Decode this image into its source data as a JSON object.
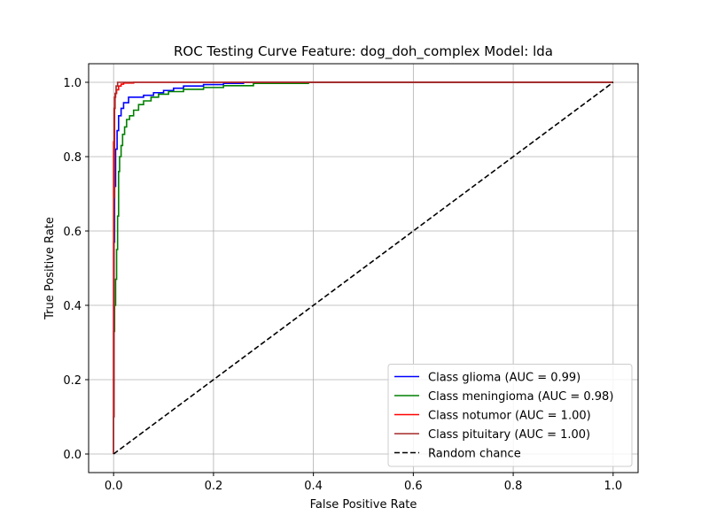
{
  "chart_data": {
    "type": "line",
    "title": "ROC Testing Curve Feature: dog_doh_complex Model: lda",
    "xlabel": "False Positive Rate",
    "ylabel": "True Positive Rate",
    "xlim": [
      -0.05,
      1.05
    ],
    "ylim": [
      -0.05,
      1.05
    ],
    "xticks": [
      0.0,
      0.2,
      0.4,
      0.6,
      0.8,
      1.0
    ],
    "yticks": [
      0.0,
      0.2,
      0.4,
      0.6,
      0.8,
      1.0
    ],
    "tick_labels_x": [
      "0.0",
      "0.2",
      "0.4",
      "0.6",
      "0.8",
      "1.0"
    ],
    "tick_labels_y": [
      "0.0",
      "0.2",
      "0.4",
      "0.6",
      "0.8",
      "1.0"
    ],
    "grid": true,
    "legend_position": "lower-right",
    "series": [
      {
        "name": "Class glioma (AUC = 0.99)",
        "color": "#0000ff",
        "style": "solid",
        "x": [
          0,
          0,
          0.002,
          0.002,
          0.004,
          0.004,
          0.007,
          0.007,
          0.01,
          0.01,
          0.015,
          0.015,
          0.02,
          0.02,
          0.03,
          0.03,
          0.06,
          0.06,
          0.08,
          0.08,
          0.1,
          0.1,
          0.12,
          0.12,
          0.14,
          0.14,
          0.18,
          0.18,
          0.22,
          0.22,
          0.26,
          0.26,
          1.0
        ],
        "y": [
          0,
          0.57,
          0.57,
          0.72,
          0.72,
          0.82,
          0.82,
          0.87,
          0.87,
          0.91,
          0.91,
          0.93,
          0.93,
          0.945,
          0.945,
          0.96,
          0.96,
          0.965,
          0.965,
          0.972,
          0.972,
          0.978,
          0.978,
          0.984,
          0.984,
          0.99,
          0.99,
          0.994,
          0.994,
          0.997,
          0.997,
          1.0,
          1.0
        ]
      },
      {
        "name": "Class meningioma (AUC = 0.98)",
        "color": "#008000",
        "style": "solid",
        "x": [
          0,
          0,
          0.002,
          0.002,
          0.004,
          0.004,
          0.006,
          0.006,
          0.008,
          0.008,
          0.01,
          0.01,
          0.012,
          0.012,
          0.015,
          0.015,
          0.018,
          0.018,
          0.022,
          0.022,
          0.026,
          0.026,
          0.032,
          0.032,
          0.04,
          0.04,
          0.05,
          0.05,
          0.06,
          0.06,
          0.075,
          0.075,
          0.09,
          0.09,
          0.11,
          0.11,
          0.14,
          0.14,
          0.18,
          0.18,
          0.22,
          0.22,
          0.28,
          0.28,
          0.39,
          0.39,
          1.0
        ],
        "y": [
          0,
          0.33,
          0.33,
          0.4,
          0.4,
          0.47,
          0.47,
          0.55,
          0.55,
          0.64,
          0.64,
          0.76,
          0.76,
          0.8,
          0.8,
          0.83,
          0.83,
          0.86,
          0.86,
          0.88,
          0.88,
          0.9,
          0.9,
          0.91,
          0.91,
          0.925,
          0.925,
          0.94,
          0.94,
          0.95,
          0.95,
          0.96,
          0.96,
          0.968,
          0.968,
          0.975,
          0.975,
          0.981,
          0.981,
          0.986,
          0.986,
          0.991,
          0.991,
          0.997,
          0.997,
          1.0,
          1.0
        ]
      },
      {
        "name": "Class notumor (AUC = 1.00)",
        "color": "#ff0000",
        "style": "solid",
        "x": [
          0,
          0,
          0.001,
          0.001,
          0.002,
          0.002,
          0.004,
          0.004,
          0.006,
          0.006,
          0.01,
          0.01,
          0.015,
          0.015,
          0.02,
          0.02,
          0.04,
          0.04,
          1.0
        ],
        "y": [
          0,
          0.84,
          0.84,
          0.93,
          0.93,
          0.96,
          0.96,
          0.97,
          0.97,
          0.98,
          0.98,
          0.99,
          0.99,
          0.995,
          0.995,
          0.998,
          0.998,
          1.0,
          1.0
        ]
      },
      {
        "name": "Class pituitary (AUC = 1.00)",
        "color": "#a52a2a",
        "style": "solid",
        "x": [
          0,
          0,
          0.001,
          0.001,
          0.002,
          0.002,
          0.003,
          0.003,
          0.005,
          0.005,
          0.008,
          0.008,
          1.0
        ],
        "y": [
          0,
          0.1,
          0.1,
          0.69,
          0.69,
          0.93,
          0.93,
          0.97,
          0.97,
          0.99,
          0.99,
          1.0,
          1.0
        ]
      },
      {
        "name": "Random chance",
        "color": "#000000",
        "style": "dashed",
        "x": [
          0,
          1
        ],
        "y": [
          0,
          1
        ]
      }
    ]
  }
}
